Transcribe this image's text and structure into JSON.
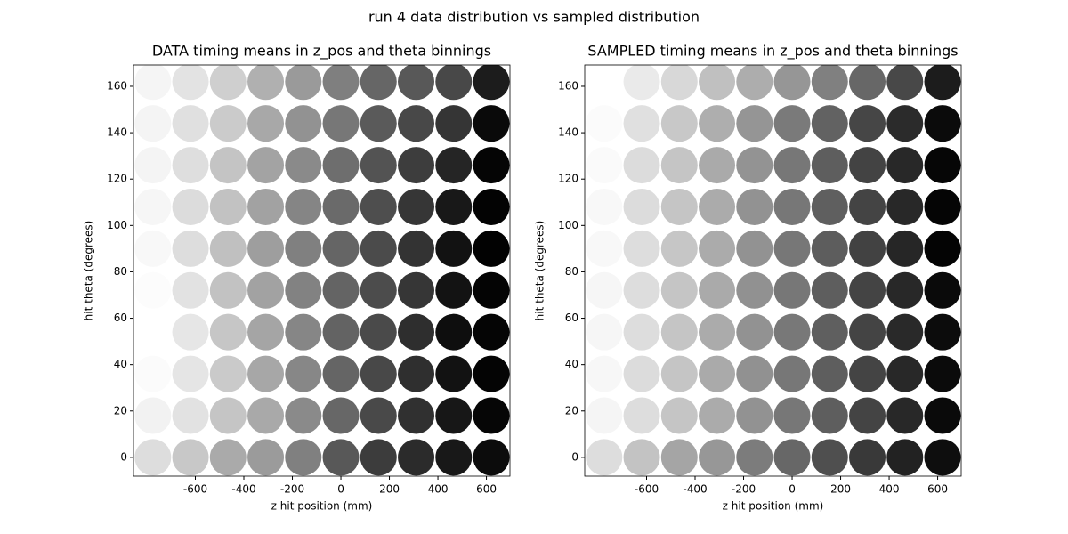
{
  "title": "run 4 data distribution vs sampled distribution",
  "chart_data": [
    {
      "type": "scatter",
      "title": "DATA timing means in z_pos and theta binnings",
      "xlabel": "z hit position (mm)",
      "ylabel": "hit theta (degrees)",
      "x": [
        -775,
        -620,
        -465,
        -310,
        -155,
        0,
        155,
        310,
        465,
        620
      ],
      "y": [
        0,
        18,
        36,
        54,
        72,
        90,
        108,
        126,
        144,
        162
      ],
      "colors": [
        [
          "#dddddd",
          "#c8c8c8",
          "#aaaaaa",
          "#9b9b9b",
          "#808080",
          "#585858",
          "#3c3c3c",
          "#2b2b2b",
          "#181818",
          "#0c0c0c"
        ],
        [
          "#f2f2f2",
          "#e2e2e2",
          "#c5c5c5",
          "#a9a9a9",
          "#8a8a8a",
          "#676767",
          "#494949",
          "#303030",
          "#171717",
          "#060606"
        ],
        [
          "#fbfbfb",
          "#e5e5e5",
          "#cacaca",
          "#a7a7a7",
          "#878787",
          "#656565",
          "#484848",
          "#2f2f2f",
          "#121212",
          "#040404"
        ],
        [
          "#ffffff",
          "#e6e6e6",
          "#c6c6c6",
          "#a5a5a5",
          "#868686",
          "#636363",
          "#4a4a4a",
          "#2e2e2e",
          "#0e0e0e",
          "#050505"
        ],
        [
          "#fcfcfc",
          "#e2e2e2",
          "#c2c2c2",
          "#a2a2a2",
          "#828282",
          "#646464",
          "#4c4c4c",
          "#363636",
          "#131313",
          "#040404"
        ],
        [
          "#f8f8f8",
          "#dddddd",
          "#c0c0c0",
          "#9e9e9e",
          "#808080",
          "#656565",
          "#4b4b4b",
          "#333333",
          "#121212",
          "#020202"
        ],
        [
          "#f6f6f6",
          "#dcdcdc",
          "#c2c2c2",
          "#a2a2a2",
          "#858585",
          "#6a6a6a",
          "#4e4e4e",
          "#363636",
          "#181818",
          "#030303"
        ],
        [
          "#f4f4f4",
          "#dedede",
          "#c4c4c4",
          "#a3a3a3",
          "#8a8a8a",
          "#6e6e6e",
          "#535353",
          "#3d3d3d",
          "#252525",
          "#050505"
        ],
        [
          "#f4f4f4",
          "#e0e0e0",
          "#cbcbcb",
          "#a8a8a8",
          "#929292",
          "#777777",
          "#5a5a5a",
          "#484848",
          "#353535",
          "#0a0a0a"
        ],
        [
          "#f5f5f5",
          "#e3e3e3",
          "#cfcfcf",
          "#b0b0b0",
          "#9a9a9a",
          "#7f7f7f",
          "#666666",
          "#585858",
          "#484848",
          "#1c1c1c"
        ]
      ],
      "xlim": [
        -855,
        697
      ],
      "ylim": [
        -8.1,
        169.2
      ],
      "xticks": [
        -600,
        -400,
        -200,
        0,
        200,
        400,
        600
      ],
      "yticks": [
        0,
        20,
        40,
        60,
        80,
        100,
        120,
        140,
        160
      ]
    },
    {
      "type": "scatter",
      "title": "SAMPLED timing means in z_pos and theta binnings",
      "xlabel": "z hit position (mm)",
      "ylabel": "hit theta (degrees)",
      "x": [
        -775,
        -620,
        -465,
        -310,
        -155,
        0,
        155,
        310,
        465,
        620
      ],
      "y": [
        0,
        18,
        36,
        54,
        72,
        90,
        108,
        126,
        144,
        162
      ],
      "colors": [
        [
          "#dddddd",
          "#c3c3c3",
          "#a5a5a5",
          "#979797",
          "#7c7c7c",
          "#676767",
          "#4f4f4f",
          "#393939",
          "#222222",
          "#0e0e0e"
        ],
        [
          "#f5f5f5",
          "#dddddd",
          "#c5c5c5",
          "#ababab",
          "#929292",
          "#777777",
          "#5e5e5e",
          "#444444",
          "#282828",
          "#0a0a0a"
        ],
        [
          "#f7f7f7",
          "#dcdcdc",
          "#c5c5c5",
          "#aaaaaa",
          "#919191",
          "#777777",
          "#5e5e5e",
          "#444444",
          "#282828",
          "#0b0b0b"
        ],
        [
          "#f6f6f6",
          "#dddddd",
          "#c5c5c5",
          "#ababab",
          "#929292",
          "#787878",
          "#5f5f5f",
          "#444444",
          "#292929",
          "#0c0c0c"
        ],
        [
          "#f6f6f6",
          "#dddddd",
          "#c5c5c5",
          "#aaaaaa",
          "#919191",
          "#777777",
          "#5e5e5e",
          "#444444",
          "#282828",
          "#0a0a0a"
        ],
        [
          "#f8f8f8",
          "#dddddd",
          "#c6c6c6",
          "#ababab",
          "#929292",
          "#777777",
          "#5d5d5d",
          "#424242",
          "#262626",
          "#040404"
        ],
        [
          "#f8f8f8",
          "#dcdcdc",
          "#c5c5c5",
          "#ababab",
          "#929292",
          "#777777",
          "#5f5f5f",
          "#444444",
          "#282828",
          "#050505"
        ],
        [
          "#fafafa",
          "#dcdcdc",
          "#c5c5c5",
          "#aaaaaa",
          "#939393",
          "#777777",
          "#5e5e5e",
          "#434343",
          "#282828",
          "#060606"
        ],
        [
          "#fbfbfb",
          "#e0e0e0",
          "#c8c8c8",
          "#aeaeae",
          "#959595",
          "#7a7a7a",
          "#626262",
          "#464646",
          "#2b2b2b",
          "#0b0b0b"
        ],
        [
          "#ffffff",
          "#eaeaea",
          "#d8d8d8",
          "#c0c0c0",
          "#adadad",
          "#969696",
          "#808080",
          "#676767",
          "#484848",
          "#1c1c1c"
        ]
      ],
      "xlim": [
        -855,
        697
      ],
      "ylim": [
        -8.1,
        169.2
      ],
      "xticks": [
        -600,
        -400,
        -200,
        0,
        200,
        400,
        600
      ],
      "yticks": [
        0,
        20,
        40,
        60,
        80,
        100,
        120,
        140,
        160
      ]
    }
  ]
}
